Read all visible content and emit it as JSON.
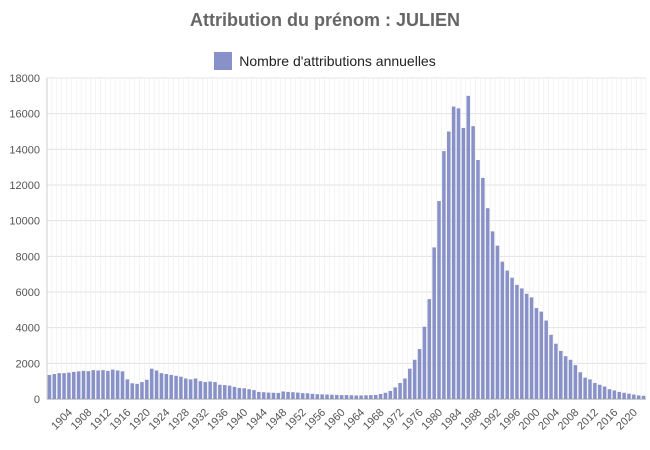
{
  "chart_data": {
    "type": "bar",
    "title": "Attribution du prénom : JULIEN",
    "xlabel": "",
    "ylabel": "",
    "legend": {
      "position": "top-center",
      "entries": [
        "Nombre d'attributions annuelles"
      ]
    },
    "grid": true,
    "ylim": [
      0,
      18000
    ],
    "yticks": [
      0,
      2000,
      4000,
      6000,
      8000,
      10000,
      12000,
      14000,
      16000,
      18000
    ],
    "xtick_labels": [
      "1904",
      "1908",
      "1912",
      "1916",
      "1920",
      "1924",
      "1928",
      "1932",
      "1936",
      "1940",
      "1944",
      "1948",
      "1952",
      "1956",
      "1960",
      "1964",
      "1968",
      "1972",
      "1976",
      "1980",
      "1984",
      "1988",
      "1992",
      "1996",
      "2000",
      "2004",
      "2008",
      "2012",
      "2016",
      "2020"
    ],
    "bar_color": "#8891c8",
    "series": [
      {
        "name": "Nombre d'attributions annuelles",
        "x": [
          1900,
          1901,
          1902,
          1903,
          1904,
          1905,
          1906,
          1907,
          1908,
          1909,
          1910,
          1911,
          1912,
          1913,
          1914,
          1915,
          1916,
          1917,
          1918,
          1919,
          1920,
          1921,
          1922,
          1923,
          1924,
          1925,
          1926,
          1927,
          1928,
          1929,
          1930,
          1931,
          1932,
          1933,
          1934,
          1935,
          1936,
          1937,
          1938,
          1939,
          1940,
          1941,
          1942,
          1943,
          1944,
          1945,
          1946,
          1947,
          1948,
          1949,
          1950,
          1951,
          1952,
          1953,
          1954,
          1955,
          1956,
          1957,
          1958,
          1959,
          1960,
          1961,
          1962,
          1963,
          1964,
          1965,
          1966,
          1967,
          1968,
          1969,
          1970,
          1971,
          1972,
          1973,
          1974,
          1975,
          1976,
          1977,
          1978,
          1979,
          1980,
          1981,
          1982,
          1983,
          1984,
          1985,
          1986,
          1987,
          1988,
          1989,
          1990,
          1991,
          1992,
          1993,
          1994,
          1995,
          1996,
          1997,
          1998,
          1999,
          2000,
          2001,
          2002,
          2003,
          2004,
          2005,
          2006,
          2007,
          2008,
          2009,
          2010,
          2011,
          2012,
          2013,
          2014,
          2015,
          2016,
          2017,
          2018,
          2019,
          2020,
          2021,
          2022
        ],
        "values": [
          1350,
          1400,
          1450,
          1450,
          1480,
          1520,
          1550,
          1580,
          1560,
          1620,
          1600,
          1620,
          1580,
          1650,
          1600,
          1550,
          1100,
          880,
          850,
          950,
          1080,
          1700,
          1600,
          1450,
          1400,
          1350,
          1300,
          1250,
          1150,
          1100,
          1150,
          1000,
          950,
          980,
          950,
          800,
          780,
          750,
          680,
          620,
          600,
          550,
          500,
          400,
          380,
          360,
          350,
          340,
          420,
          400,
          380,
          360,
          330,
          320,
          290,
          270,
          260,
          250,
          240,
          230,
          220,
          220,
          210,
          200,
          200,
          210,
          220,
          230,
          280,
          350,
          450,
          650,
          900,
          1150,
          1700,
          2200,
          2800,
          4050,
          5600,
          8500,
          11100,
          13900,
          15000,
          16400,
          16300,
          15200,
          17000,
          15300,
          13400,
          12400,
          10700,
          9400,
          8600,
          7700,
          7200,
          6800,
          6400,
          6200,
          5900,
          5700,
          5100,
          4900,
          4400,
          3600,
          3100,
          2700,
          2400,
          2200,
          1900,
          1500,
          1200,
          1100,
          900,
          800,
          700,
          550,
          480,
          400,
          350,
          300,
          250,
          200,
          180
        ]
      }
    ]
  }
}
